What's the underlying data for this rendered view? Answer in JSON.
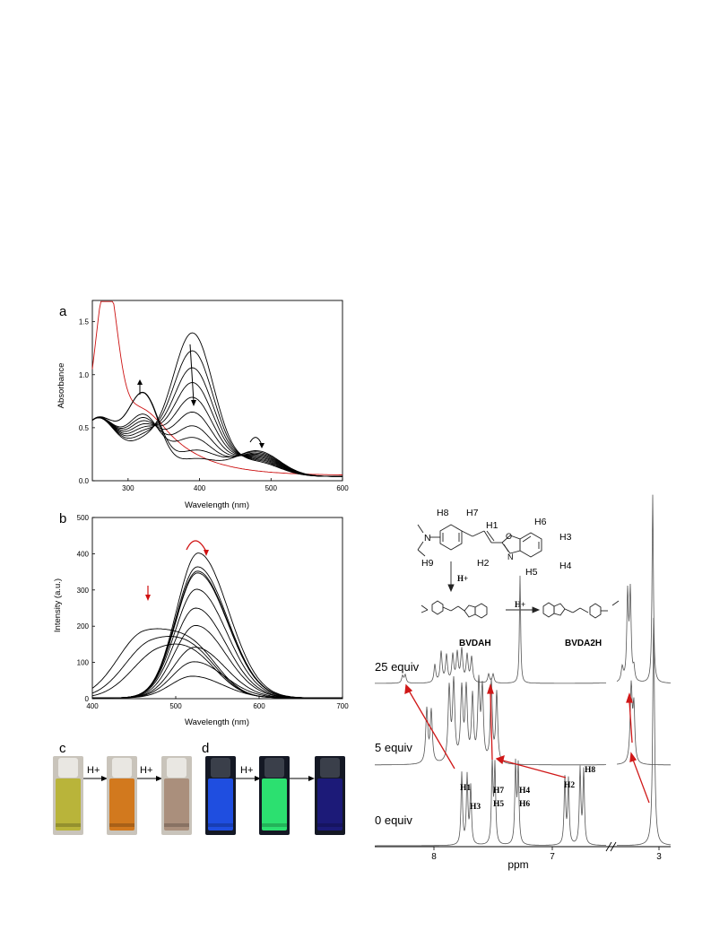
{
  "panels": {
    "a": "a",
    "b": "b",
    "c": "c",
    "d": "d"
  },
  "chart_data": [
    {
      "id": "a",
      "type": "line",
      "xlabel": "Wavelength (nm)",
      "ylabel": "Absorbance",
      "xlim": [
        250,
        600
      ],
      "ylim": [
        0,
        1.7
      ],
      "xticks": [
        300,
        400,
        500,
        600
      ],
      "yticks": [
        0.0,
        0.5,
        1.0,
        1.5
      ],
      "ytick_labels": [
        "0.0",
        "0.5",
        "1.0",
        "1.5"
      ],
      "series": [
        {
          "color": "#cc1111",
          "peaks": [
            [
              270,
              1.57
            ]
          ],
          "tail": 0.92
        },
        {
          "color": "#000000",
          "peaks": [
            [
              390,
              1.35
            ]
          ],
          "tail": 0.62
        },
        {
          "color": "#000000",
          "peaks": [
            [
              390,
              1.18
            ]
          ],
          "tail": 0.61
        },
        {
          "color": "#000000",
          "peaks": [
            [
              390,
              1.02
            ]
          ],
          "tail": 0.6
        },
        {
          "color": "#000000",
          "peaks": [
            [
              390,
              0.88
            ]
          ],
          "tail": 0.59
        },
        {
          "color": "#000000",
          "peaks": [
            [
              390,
              0.74
            ]
          ],
          "tail": 0.58
        },
        {
          "color": "#000000",
          "peaks": [
            [
              390,
              0.6
            ]
          ],
          "tail": 0.57
        },
        {
          "color": "#000000",
          "peaks": [
            [
              390,
              0.47
            ]
          ],
          "tail": 0.56
        },
        {
          "color": "#000000",
          "peaks": [
            [
              390,
              0.36
            ]
          ],
          "tail": 0.55
        },
        {
          "color": "#000000",
          "peaks": [
            [
              322,
              0.74
            ],
            [
              395,
              0.24
            ]
          ],
          "tail": 0.55
        },
        {
          "color": "#000000",
          "peaks": [
            [
              322,
              0.74
            ],
            [
              395,
              0.16
            ]
          ],
          "tail": 0.54
        }
      ],
      "arrows": [
        "up at 320 nm",
        "down at 390 nm",
        "curved at 480 nm"
      ]
    },
    {
      "id": "b",
      "type": "line",
      "xlabel": "Wavelength (nm)",
      "ylabel": "Intensity (a.u.)",
      "xlim": [
        400,
        700
      ],
      "ylim": [
        0,
        500
      ],
      "xticks": [
        400,
        500,
        600,
        700
      ],
      "yticks": [
        0,
        100,
        200,
        300,
        400,
        500
      ],
      "series": [
        {
          "peak_nm": 462,
          "peak": 175
        },
        {
          "peak_nm": 470,
          "peak": 145
        },
        {
          "peak_nm": 478,
          "peak": 118
        },
        {
          "peak_nm": 520,
          "peak": 60
        },
        {
          "peak_nm": 522,
          "peak": 100
        },
        {
          "peak_nm": 523,
          "peak": 140
        },
        {
          "peak_nm": 524,
          "peak": 200
        },
        {
          "peak_nm": 524,
          "peak": 248
        },
        {
          "peak_nm": 525,
          "peak": 300
        },
        {
          "peak_nm": 526,
          "peak": 350
        },
        {
          "peak_nm": 527,
          "peak": 400
        },
        {
          "peak_nm": 526,
          "peak": 362
        },
        {
          "peak_nm": 526,
          "peak": 345
        }
      ],
      "arrows": [
        "down at 462 nm",
        "curved at 525 nm"
      ]
    },
    {
      "id": "nmr",
      "type": "line",
      "xlabel": "ppm",
      "xticks": [
        "8",
        "7",
        "3"
      ],
      "traces": [
        {
          "label": "0 equiv"
        },
        {
          "label": "5 equiv"
        },
        {
          "label": "25 equiv"
        }
      ],
      "peak_labels": [
        "H1",
        "H3",
        "H7",
        "H5",
        "H4",
        "H6",
        "H2",
        "H8"
      ]
    }
  ],
  "vials_c": {
    "arrow1": "H+",
    "arrow2": "H+",
    "colors": [
      "#b9b43a",
      "#d2791e",
      "#aa8f7c"
    ]
  },
  "vials_d": {
    "arrow1": "H+",
    "colors": [
      "#1f4ee0",
      "#2ce070",
      "#1c1a78"
    ]
  },
  "scheme": {
    "atom_labels": [
      "H8",
      "H7",
      "H1",
      "H6",
      "H3",
      "H4",
      "H5",
      "H2",
      "H9",
      "N",
      "O",
      "N"
    ],
    "proton": "H+",
    "compound1": "BVDAH",
    "compound2": "BVDA2H"
  }
}
